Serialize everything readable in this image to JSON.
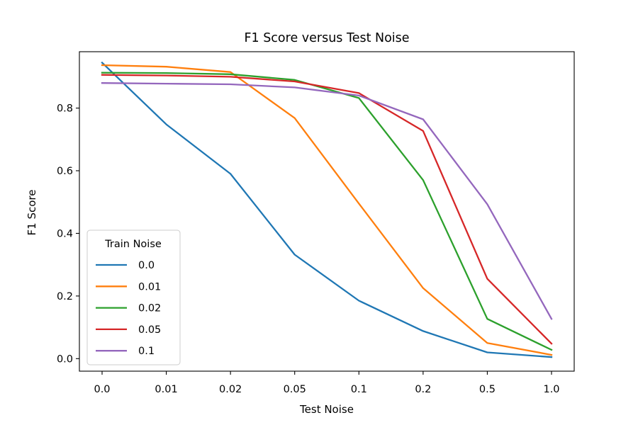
{
  "chart_data": {
    "type": "line",
    "title": "F1 Score versus Test Noise",
    "xlabel": "Test Noise",
    "ylabel": "F1 Score",
    "categories": [
      "0.0",
      "0.01",
      "0.02",
      "0.05",
      "0.1",
      "0.2",
      "0.5",
      "1.0"
    ],
    "ylim": [
      -0.04,
      0.98
    ],
    "yticks": [
      "0.0",
      "0.2",
      "0.4",
      "0.6",
      "0.8"
    ],
    "grid": false,
    "legend": {
      "title": "Train Noise",
      "placement": "lower-left"
    },
    "series": [
      {
        "name": "0.0",
        "color": "#1f77b4",
        "values": [
          0.945,
          0.748,
          0.59,
          0.332,
          0.185,
          0.088,
          0.02,
          0.005
        ]
      },
      {
        "name": "0.01",
        "color": "#ff7f0e",
        "values": [
          0.937,
          0.932,
          0.915,
          0.768,
          0.495,
          0.225,
          0.05,
          0.012
        ]
      },
      {
        "name": "0.02",
        "color": "#2ca02c",
        "values": [
          0.913,
          0.912,
          0.908,
          0.89,
          0.832,
          0.57,
          0.127,
          0.028
        ]
      },
      {
        "name": "0.05",
        "color": "#d62728",
        "values": [
          0.906,
          0.904,
          0.9,
          0.885,
          0.848,
          0.727,
          0.255,
          0.048
        ]
      },
      {
        "name": "0.1",
        "color": "#9467bd",
        "values": [
          0.88,
          0.878,
          0.876,
          0.866,
          0.84,
          0.764,
          0.493,
          0.127
        ]
      }
    ]
  }
}
